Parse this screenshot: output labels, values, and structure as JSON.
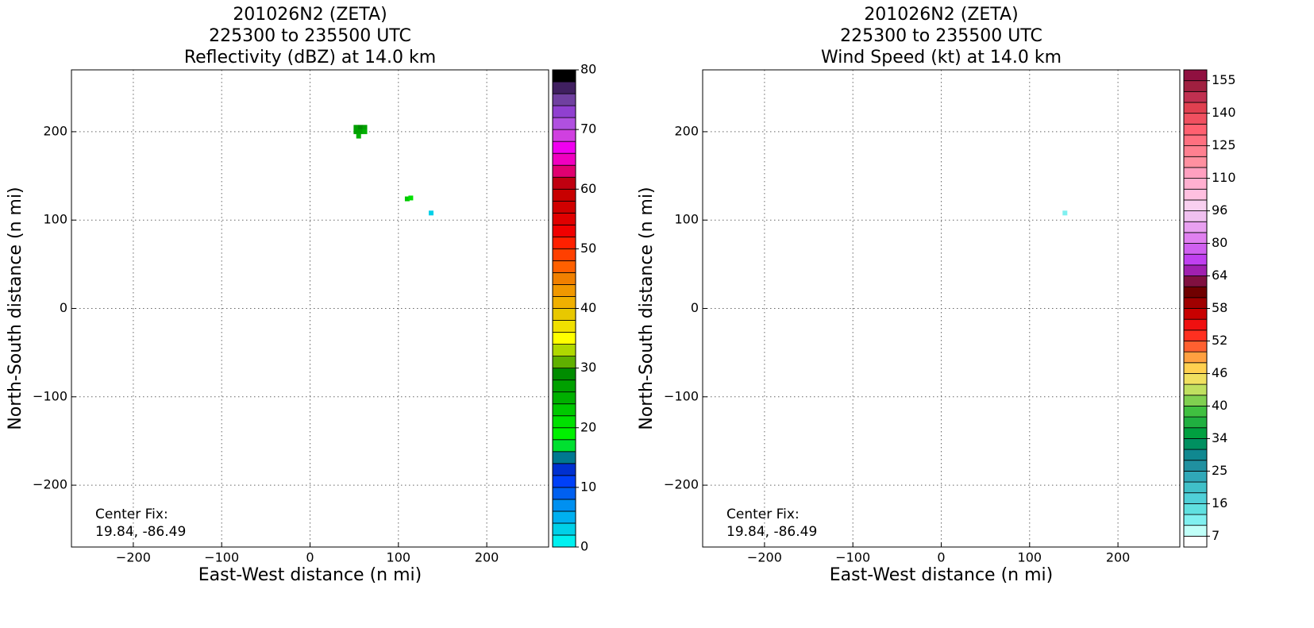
{
  "chart_data": [
    {
      "type": "heatmap",
      "title": [
        "201026N2 (ZETA)",
        "225300 to 235500 UTC",
        "Reflectivity (dBZ) at 14.0 km"
      ],
      "xlabel": "East-West distance (n mi)",
      "ylabel": "North-South distance (n mi)",
      "annotation": [
        "Center Fix:",
        "19.84, -86.49"
      ],
      "xlim": [
        -270,
        270
      ],
      "ylim": [
        -270,
        270
      ],
      "xticks": [
        {
          "value": -200,
          "label": "−200"
        },
        {
          "value": -100,
          "label": "−100"
        },
        0,
        100,
        200
      ],
      "yticks": [
        {
          "value": -200,
          "label": "−200"
        },
        {
          "value": -100,
          "label": "−100"
        },
        0,
        100,
        200
      ],
      "grid": true,
      "x": [
        52,
        57,
        62,
        52,
        57,
        62,
        55,
        110,
        114,
        137
      ],
      "y": [
        205,
        205,
        205,
        200,
        200,
        200,
        195,
        124,
        125,
        108
      ],
      "values": [
        27,
        28,
        26,
        26,
        27,
        25,
        24,
        22,
        21,
        3
      ],
      "colorbar": {
        "lim": [
          0,
          80
        ],
        "ticks": [
          0,
          10,
          20,
          30,
          40,
          50,
          60,
          70,
          80
        ],
        "colors": [
          "#00f0f0",
          "#00d0e8",
          "#00b0f0",
          "#0090f0",
          "#0060f0",
          "#0040f8",
          "#0030d0",
          "#007890",
          "#00e030",
          "#00f000",
          "#00e000",
          "#00c800",
          "#00b000",
          "#00a000",
          "#008c00",
          "#60b000",
          "#b0d800",
          "#ffff00",
          "#f0e000",
          "#e8c800",
          "#f0b000",
          "#f09800",
          "#f08000",
          "#ff6000",
          "#ff4000",
          "#ff2000",
          "#f00000",
          "#e00000",
          "#d00000",
          "#c80000",
          "#c00010",
          "#e00070",
          "#f000c0",
          "#f000f0",
          "#d040e0",
          "#b050e0",
          "#9040d0",
          "#7040a0",
          "#402060",
          "#000000"
        ]
      }
    },
    {
      "type": "heatmap",
      "title": [
        "201026N2 (ZETA)",
        "225300 to 235500 UTC",
        "Wind Speed (kt) at 14.0 km"
      ],
      "xlabel": "East-West distance (n mi)",
      "ylabel": "North-South distance (n mi)",
      "annotation": [
        "Center Fix:",
        "19.84, -86.49"
      ],
      "xlim": [
        -270,
        270
      ],
      "ylim": [
        -270,
        270
      ],
      "xticks": [
        {
          "value": -200,
          "label": "−200"
        },
        {
          "value": -100,
          "label": "−100"
        },
        0,
        100,
        200
      ],
      "yticks": [
        {
          "value": -200,
          "label": "−200"
        },
        {
          "value": -100,
          "label": "−100"
        },
        0,
        100,
        200
      ],
      "grid": true,
      "x": [
        140
      ],
      "y": [
        108
      ],
      "values": [
        12
      ],
      "colorbar": {
        "ticks": [
          7,
          16,
          25,
          34,
          40,
          46,
          52,
          58,
          64,
          80,
          96,
          110,
          125,
          140,
          155
        ],
        "colors": [
          "#ffffff",
          "#c0fff8",
          "#80f0f0",
          "#60e0e0",
          "#50d0d8",
          "#40c0c8",
          "#30a8b8",
          "#2090a0",
          "#108890",
          "#009060",
          "#00a040",
          "#20b040",
          "#40c040",
          "#80d050",
          "#c0e060",
          "#f0e060",
          "#ffd050",
          "#ffa040",
          "#ff6030",
          "#ff3020",
          "#f01010",
          "#c80000",
          "#a00000",
          "#700000",
          "#801040",
          "#a020b0",
          "#c040f0",
          "#d060f0",
          "#e080f0",
          "#e8a0f0",
          "#f0c0f0",
          "#f8d0f0",
          "#ffc0e0",
          "#ffb0d0",
          "#ffa0c0",
          "#ff90a0",
          "#ff8090",
          "#ff7080",
          "#ff6070",
          "#f05060",
          "#e04050",
          "#c03050",
          "#a02040",
          "#901040"
        ]
      }
    }
  ]
}
